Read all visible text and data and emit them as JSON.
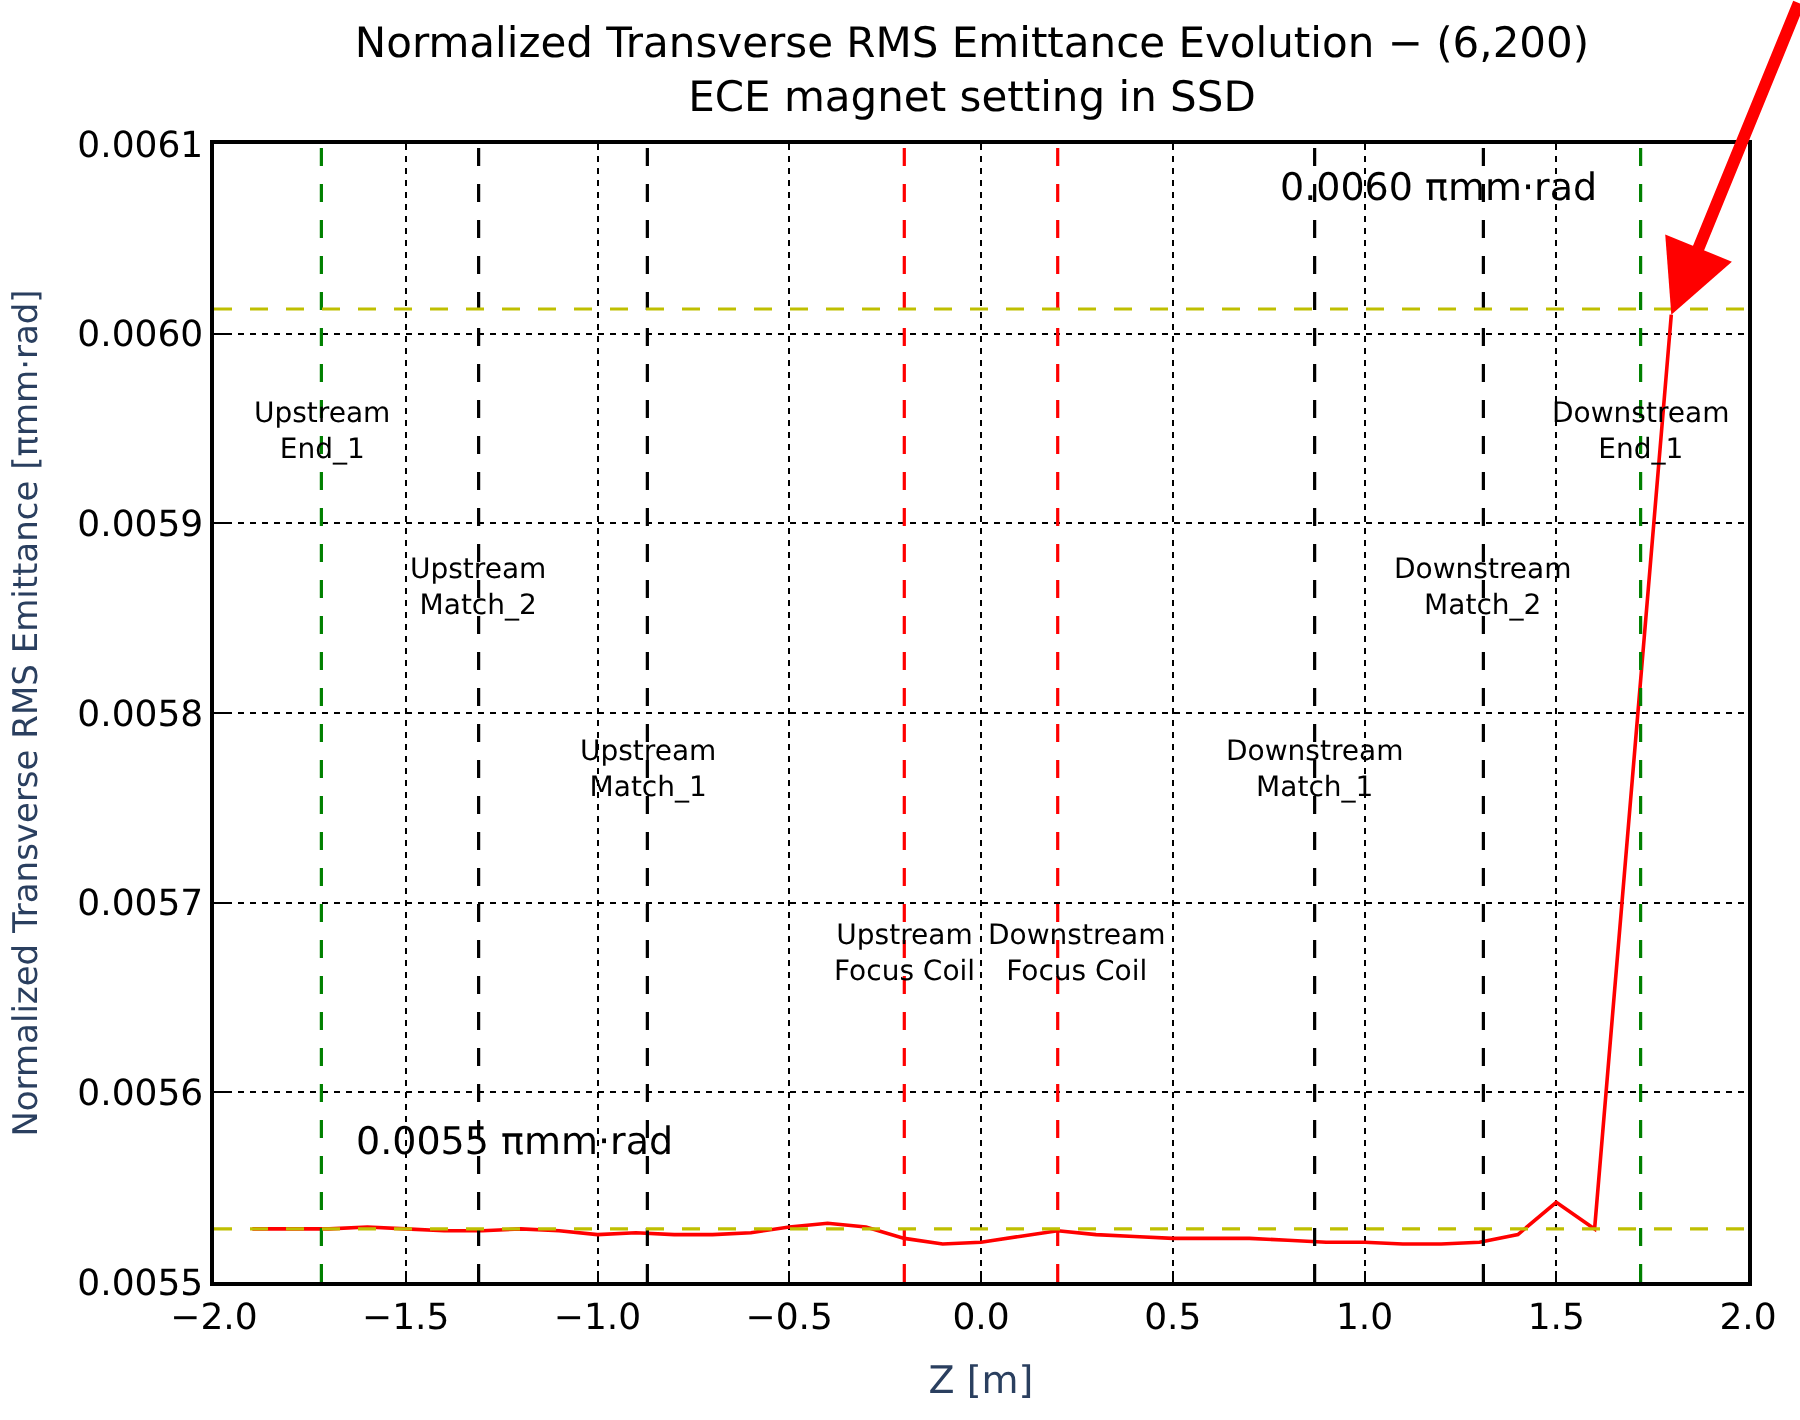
{
  "chart_data": {
    "type": "line",
    "title": "Normalized Transverse RMS Emittance Evolution − (6,200)\nECE magnet setting in SSD",
    "xlabel": "Z [m]",
    "ylabel": "Normalized Transverse RMS Emittance [πmm·rad]",
    "x": [
      -1.9,
      -1.8,
      -1.7,
      -1.6,
      -1.5,
      -1.4,
      -1.3,
      -1.2,
      -1.1,
      -1.0,
      -0.9,
      -0.8,
      -0.7,
      -0.6,
      -0.5,
      -0.4,
      -0.3,
      -0.2,
      -0.1,
      0.0,
      0.1,
      0.2,
      0.3,
      0.4,
      0.5,
      0.6,
      0.7,
      0.8,
      0.9,
      1.0,
      1.1,
      1.2,
      1.3,
      1.4,
      1.5,
      1.6,
      1.8
    ],
    "series": [
      {
        "color": "#ff0000",
        "values": [
          0.005528,
          0.005528,
          0.005528,
          0.005529,
          0.005528,
          0.005527,
          0.005527,
          0.005528,
          0.005527,
          0.005525,
          0.005526,
          0.005525,
          0.005525,
          0.005526,
          0.005529,
          0.005531,
          0.005529,
          0.005523,
          0.00552,
          0.005521,
          0.005524,
          0.005527,
          0.005525,
          0.005524,
          0.005523,
          0.005523,
          0.005523,
          0.005522,
          0.005521,
          0.005521,
          0.00552,
          0.00552,
          0.005521,
          0.005525,
          0.005542,
          0.005528,
          0.00601
        ]
      }
    ],
    "xlim": [
      -2.0,
      2.0
    ],
    "ylim": [
      0.0055,
      0.0061
    ],
    "xticks": [
      {
        "value": -2.0,
        "label": "−2.0"
      },
      {
        "value": -1.5,
        "label": "−1.5"
      },
      {
        "value": -1.0,
        "label": "−1.0"
      },
      {
        "value": -0.5,
        "label": "−0.5"
      },
      {
        "value": 0.0,
        "label": "0.0"
      },
      {
        "value": 0.5,
        "label": "0.5"
      },
      {
        "value": 1.0,
        "label": "1.0"
      },
      {
        "value": 1.5,
        "label": "1.5"
      },
      {
        "value": 2.0,
        "label": "2.0"
      }
    ],
    "yticks": [
      {
        "value": 0.0055,
        "label": "0.0055"
      },
      {
        "value": 0.0056,
        "label": "0.0056"
      },
      {
        "value": 0.0057,
        "label": "0.0057"
      },
      {
        "value": 0.0058,
        "label": "0.0058"
      },
      {
        "value": 0.0059,
        "label": "0.0059"
      },
      {
        "value": 0.006,
        "label": "0.0060"
      },
      {
        "value": 0.0061,
        "label": "0.0061"
      }
    ],
    "grid": true,
    "line_style": "solid",
    "marker": "none",
    "ref_lines": [
      {
        "axis": "x",
        "value": -1.72,
        "label": "Upstream\nEnd_1",
        "color": "#008000",
        "line_style": "dashed"
      },
      {
        "axis": "x",
        "value": -1.31,
        "label": "Upstream\nMatch_2",
        "color": "#000000",
        "line_style": "dashed"
      },
      {
        "axis": "x",
        "value": -0.87,
        "label": "Upstream\nMatch_1",
        "color": "#000000",
        "line_style": "dashed"
      },
      {
        "axis": "x",
        "value": -0.2,
        "label": "Upstream\nFocus Coil",
        "color": "#ff0000",
        "line_style": "dashed"
      },
      {
        "axis": "x",
        "value": 0.2,
        "label": "Downstream\nFocus Coil",
        "color": "#ff0000",
        "line_style": "dashed"
      },
      {
        "axis": "x",
        "value": 0.87,
        "label": "Downstream\nMatch_1",
        "color": "#000000",
        "line_style": "dashed"
      },
      {
        "axis": "x",
        "value": 1.31,
        "label": "Downstream\nMatch_2",
        "color": "#000000",
        "line_style": "dashed"
      },
      {
        "axis": "x",
        "value": 1.72,
        "label": "Downstream\nEnd_1",
        "color": "#008000",
        "line_style": "dashed"
      },
      {
        "axis": "y",
        "value": 0.006013,
        "label": "0.0060 πmm·rad",
        "color": "#bfbf00",
        "line_style": "dashed"
      },
      {
        "axis": "y",
        "value": 0.005528,
        "label": "0.0055 πmm·rad",
        "color": "#bfbf00",
        "line_style": "dashed"
      }
    ]
  }
}
